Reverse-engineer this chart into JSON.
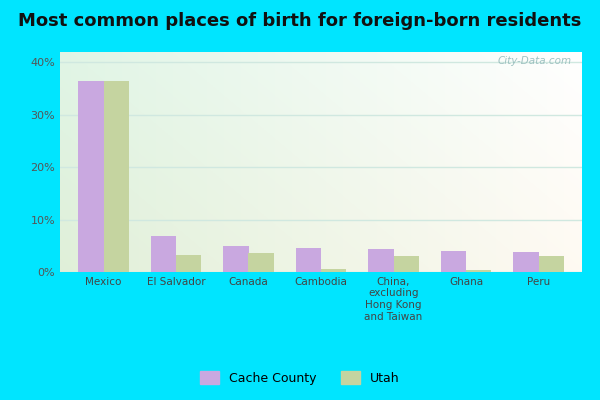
{
  "title": "Most common places of birth for foreign-born residents",
  "categories": [
    "Mexico",
    "El Salvador",
    "Canada",
    "Cambodia",
    "China,\nexcluding\nHong Kong\nand Taiwan",
    "Ghana",
    "Peru"
  ],
  "cache_county": [
    36.5,
    6.8,
    5.0,
    4.6,
    4.3,
    4.1,
    3.9
  ],
  "utah": [
    36.5,
    3.2,
    3.7,
    0.5,
    3.1,
    0.3,
    3.0
  ],
  "cache_color": "#c9a8e0",
  "utah_color": "#c5d4a0",
  "background_outer": "#00e5ff",
  "ylim": [
    0,
    42
  ],
  "yticks": [
    0,
    10,
    20,
    30,
    40
  ],
  "ytick_labels": [
    "0%",
    "10%",
    "20%",
    "30%",
    "40%"
  ],
  "legend_labels": [
    "Cache County",
    "Utah"
  ],
  "bar_width": 0.35,
  "watermark": "City-Data.com",
  "title_fontsize": 13,
  "grid_color": "#d0e8e0",
  "grid_linewidth": 1.0
}
